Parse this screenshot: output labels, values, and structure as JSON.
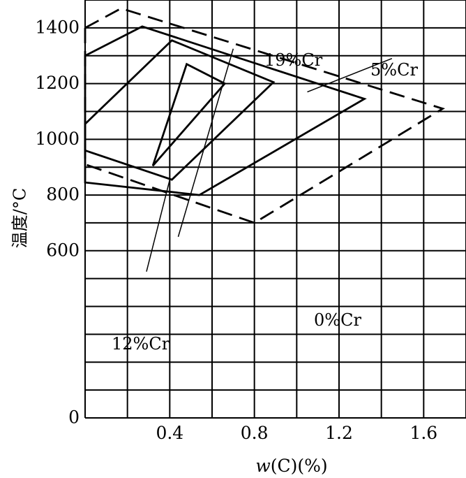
{
  "chart_data": {
    "type": "line",
    "xlabel_italic": "w",
    "xlabel_rest": "(C)(%)",
    "ylabel": "温度/°C",
    "xlim": [
      0,
      1.8
    ],
    "ylim": [
      0,
      1500
    ],
    "x_ticks": [
      {
        "value": 0.4,
        "label": "0.4"
      },
      {
        "value": 0.8,
        "label": "0.8"
      },
      {
        "value": 1.2,
        "label": "1.2"
      },
      {
        "value": 1.6,
        "label": "1.6"
      }
    ],
    "y_ticks": [
      {
        "value": 0,
        "label": "0"
      },
      {
        "value": 600,
        "label": "600"
      },
      {
        "value": 800,
        "label": "800"
      },
      {
        "value": 1000,
        "label": "1000"
      },
      {
        "value": 1200,
        "label": "1200"
      },
      {
        "value": 1400,
        "label": "1400"
      }
    ],
    "grid": true,
    "series": [
      {
        "name": "0%Cr",
        "style": "dashed",
        "closed": true,
        "points": [
          [
            0,
            1400
          ],
          [
            0.17,
            1470
          ],
          [
            1.69,
            1110
          ],
          [
            0.8,
            700
          ],
          [
            0,
            910
          ]
        ]
      },
      {
        "name": "5%Cr",
        "style": "solid",
        "closed": true,
        "points": [
          [
            0,
            1300
          ],
          [
            0.27,
            1405
          ],
          [
            1.32,
            1145
          ],
          [
            0.54,
            800
          ],
          [
            0,
            845
          ]
        ]
      },
      {
        "name": "12%Cr",
        "style": "solid",
        "closed": true,
        "points": [
          [
            0,
            1055
          ],
          [
            0.41,
            1355
          ],
          [
            0.89,
            1205
          ],
          [
            0.41,
            855
          ],
          [
            0,
            960
          ]
        ]
      },
      {
        "name": "19%Cr",
        "style": "solid",
        "closed": true,
        "points": [
          [
            0.32,
            905
          ],
          [
            0.48,
            1270
          ],
          [
            0.66,
            1200
          ]
        ]
      }
    ],
    "annotations": [
      {
        "text": "19%Cr",
        "series": "19%Cr"
      },
      {
        "text": "5%Cr",
        "series": "5%Cr"
      },
      {
        "text": "0%Cr",
        "series": "0%Cr"
      },
      {
        "text": "12%Cr",
        "series": "12%Cr"
      }
    ]
  }
}
